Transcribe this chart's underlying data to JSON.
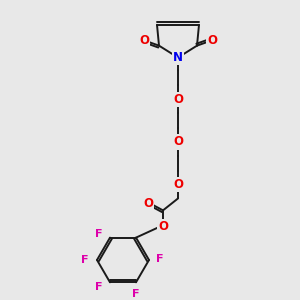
{
  "bg_color": "#e8e8e8",
  "bond_color": "#1a1a1a",
  "bond_width": 1.4,
  "N_color": "#0000ee",
  "O_color": "#ee0000",
  "F_color": "#dd00aa",
  "figsize": [
    3.0,
    3.0
  ],
  "dpi": 100,
  "xlim": [
    0,
    300
  ],
  "ylim": [
    0,
    300
  ]
}
